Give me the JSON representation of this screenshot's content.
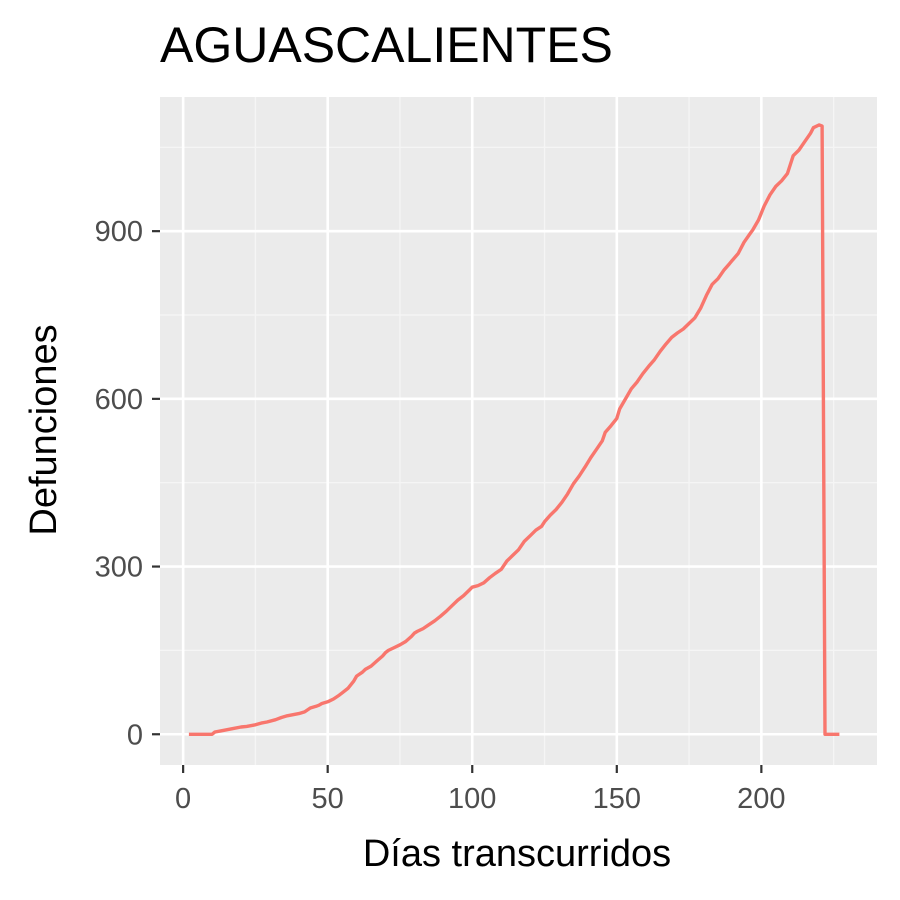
{
  "colors": {
    "panel_background": "#ebebeb",
    "grid_major": "#ffffff",
    "grid_minor": "#f5f5f5",
    "series_line": "#f8766d",
    "tick_mark": "#333333",
    "tick_label": "#4d4d4d"
  },
  "chart_data": {
    "type": "line",
    "title": "AGUASCALIENTES",
    "xlabel": "Días transcurridos",
    "ylabel": "Defunciones",
    "xlim": [
      -8,
      240
    ],
    "ylim": [
      -55,
      1140
    ],
    "x_ticks": [
      0,
      50,
      100,
      150,
      200
    ],
    "x_tick_labels": [
      "0",
      "50",
      "100",
      "150",
      "200"
    ],
    "y_ticks": [
      0,
      300,
      600,
      900
    ],
    "y_tick_labels": [
      "0",
      "300",
      "600",
      "900"
    ],
    "grid": true,
    "legend": "none",
    "series": [
      {
        "x": [
          2,
          10,
          11,
          13,
          15,
          17,
          20,
          22,
          25,
          27,
          29,
          32,
          34,
          36,
          38,
          40,
          42,
          44,
          46,
          47,
          48,
          50,
          52,
          54,
          55,
          57,
          59,
          60,
          62,
          63,
          65,
          67,
          69,
          70,
          71,
          73,
          75,
          77,
          79,
          80,
          81,
          83,
          85,
          87,
          89,
          91,
          93,
          95,
          97,
          99,
          100,
          102,
          104,
          106,
          108,
          110,
          112,
          114,
          116,
          118,
          120,
          122,
          124,
          125,
          127,
          129,
          131,
          133,
          135,
          137,
          139,
          141,
          143,
          145,
          146,
          148,
          150,
          151,
          153,
          155,
          157,
          159,
          161,
          163,
          165,
          167,
          169,
          171,
          173,
          175,
          177,
          179,
          181,
          183,
          185,
          187,
          189,
          190,
          192,
          194,
          196,
          197,
          199,
          201,
          203,
          205,
          207,
          209,
          211,
          213,
          215,
          217,
          218,
          220,
          221,
          222,
          223,
          227
        ],
        "values": [
          0,
          0,
          4,
          6,
          8,
          10,
          13,
          14,
          17,
          20,
          22,
          26,
          30,
          33,
          35,
          37,
          40,
          47,
          50,
          52,
          55,
          58,
          63,
          70,
          74,
          82,
          95,
          104,
          111,
          116,
          122,
          131,
          140,
          146,
          150,
          155,
          160,
          166,
          175,
          181,
          184,
          189,
          196,
          203,
          211,
          220,
          230,
          240,
          248,
          258,
          263,
          266,
          271,
          280,
          288,
          295,
          310,
          320,
          330,
          345,
          355,
          365,
          372,
          380,
          392,
          402,
          415,
          430,
          448,
          462,
          478,
          495,
          510,
          525,
          540,
          552,
          565,
          582,
          600,
          618,
          630,
          645,
          658,
          670,
          685,
          698,
          710,
          718,
          725,
          735,
          745,
          762,
          785,
          805,
          815,
          830,
          842,
          848,
          860,
          880,
          895,
          902,
          920,
          945,
          965,
          980,
          990,
          1003,
          1035,
          1045,
          1060,
          1075,
          1085,
          1090,
          1088,
          0,
          0,
          0
        ]
      }
    ]
  }
}
